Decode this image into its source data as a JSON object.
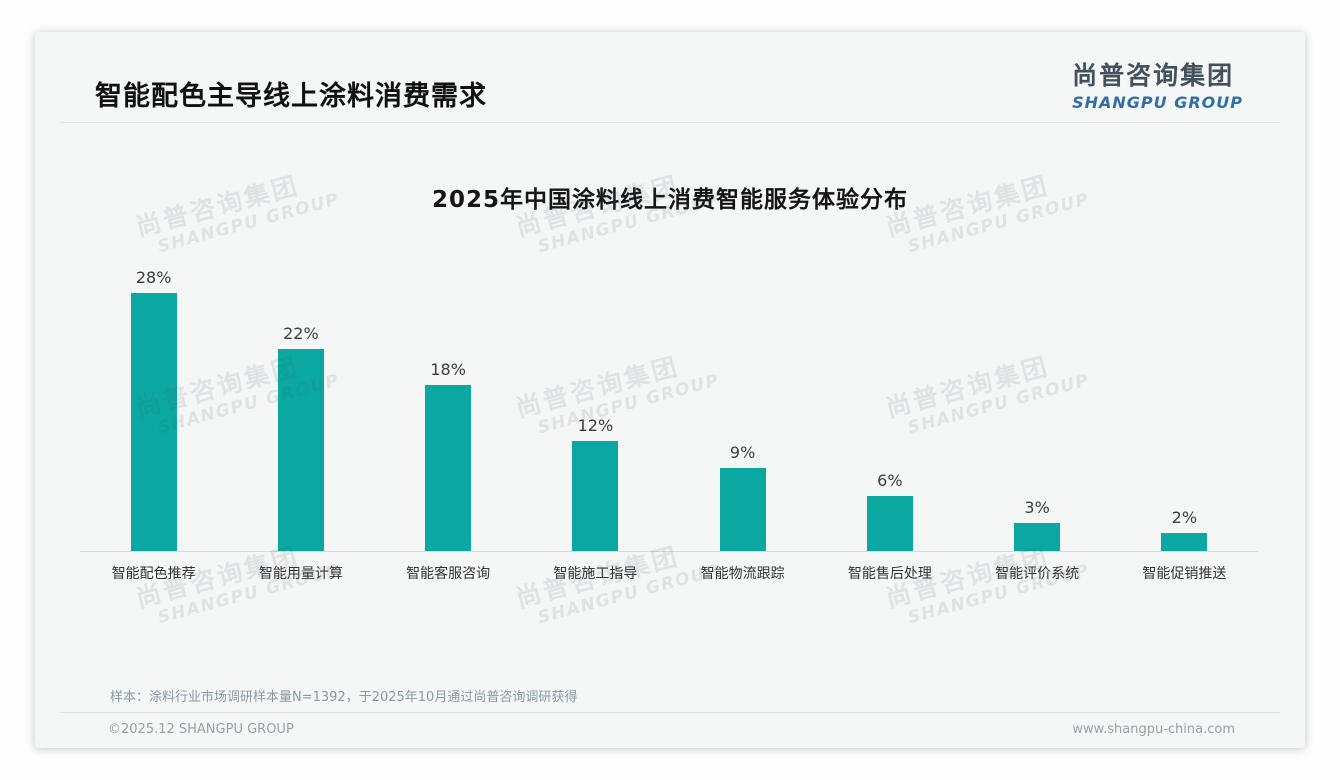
{
  "header": {
    "title": "智能配色主导线上涂料消费需求"
  },
  "logo": {
    "name_cn": "尚普咨询集团",
    "name_en": "SHANGPU GROUP"
  },
  "watermark": {
    "text_cn": "尚普咨询集团",
    "text_en": "SHANGPU GROUP"
  },
  "chart_data": {
    "type": "bar",
    "title": "2025年中国涂料线上消费智能服务体验分布",
    "categories": [
      "智能配色推荐",
      "智能用量计算",
      "智能客服咨询",
      "智能施工指导",
      "智能物流跟踪",
      "智能售后处理",
      "智能评价系统",
      "智能促销推送"
    ],
    "values": [
      28,
      22,
      18,
      12,
      9,
      6,
      3,
      2
    ],
    "value_labels": [
      "28%",
      "22%",
      "18%",
      "12%",
      "9%",
      "6%",
      "3%",
      "2%"
    ],
    "unit": "%",
    "xlabel": "",
    "ylabel": "",
    "ylim": [
      0,
      30
    ],
    "grid": false,
    "legend": false,
    "bar_color": "#0AA8A0",
    "baseline_color": "#D9D9D9"
  },
  "footer": {
    "note": "样本：涂料行业市场调研样本量N=1392，于2025年10月通过尚普咨询调研获得",
    "copyright": "©2025.12 SHANGPU GROUP",
    "website": "www.shangpu-china.com"
  },
  "colors": {
    "bar_teal": "#0AA8A0",
    "logo_blue": "#2F6EA7",
    "logo_dark": "#44505C",
    "title_dark": "#111111",
    "card_bg": "#F5F6F6"
  }
}
